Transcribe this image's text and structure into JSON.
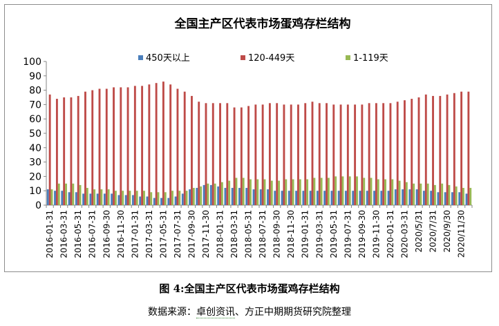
{
  "chart_data": {
    "type": "bar",
    "title": "全国主产区代表市场蛋鸡存栏结构",
    "ylim": [
      0,
      100
    ],
    "yticks": [
      0,
      10,
      20,
      30,
      40,
      50,
      60,
      70,
      80,
      90,
      100
    ],
    "legend_position": "top",
    "grid": false,
    "categories": [
      "2016-01-31",
      "2016-02-29",
      "2016-03-31",
      "2016-04-30",
      "2016-05-31",
      "2016-06-30",
      "2016-07-31",
      "2016-08-31",
      "2016-09-30",
      "2016-10-31",
      "2016-11-30",
      "2016-12-31",
      "2017-01-31",
      "2017-02-28",
      "2017-03-31",
      "2017-04-30",
      "2017-05-31",
      "2017-06-30",
      "2017-07-31",
      "2017-08-31",
      "2017-09-30",
      "2017-10-31",
      "2017-11-30",
      "2017-12-31",
      "2018-01-31",
      "2018-02-28",
      "2018-03-31",
      "2018-04-30",
      "2018-05-31",
      "2018-06-30",
      "2018-07-31",
      "2018-08-31",
      "2018-09-30",
      "2018-10-31",
      "2018-11-30",
      "2018-12-31",
      "2019-01-31",
      "2019-02-28",
      "2019-03-31",
      "2019-04-30",
      "2019-05-31",
      "2019-06-30",
      "2019-07-31",
      "2019-08-31",
      "2019-09-30",
      "2019-10-31",
      "2019-11-30",
      "2019-12-31",
      "2020-01-31",
      "2020-02-29",
      "2020-03-31",
      "2020/4/30",
      "2020/5/31",
      "2020/6/30",
      "2020/7/31",
      "2020/8/31",
      "2020/9/30",
      "2020/10/31",
      "2020/11/30",
      "2020/12/31"
    ],
    "tick_labels": [
      "2016-01-31",
      "2016-03-31",
      "2016-05-31",
      "2016-07-31",
      "2016-09-30",
      "2016-11-30",
      "2017-01-31",
      "2017-03-31",
      "2017-05-31",
      "2017-07-31",
      "2017-09-30",
      "2017-11-30",
      "2018-01-31",
      "2018-03-31",
      "2018-05-31",
      "2018-07-31",
      "2018-09-30",
      "2018-11-30",
      "2019-01-31",
      "2019-03-31",
      "2019-05-31",
      "2019-07-31",
      "2019-09-30",
      "2019-11-30",
      "2020-01-31",
      "2020-03-31",
      "2020/5/31",
      "2020/7/31",
      "2020/9/30",
      "2020/11/30"
    ],
    "series": [
      {
        "name": "450天以上",
        "color": "#4a7ebb",
        "values": [
          11,
          10,
          10,
          9,
          9,
          8,
          8,
          8,
          8,
          8,
          7,
          7,
          7,
          6,
          6,
          5,
          5,
          5,
          6,
          8,
          11,
          12,
          14,
          14,
          13,
          12,
          12,
          12,
          12,
          11,
          11,
          11,
          10,
          10,
          10,
          10,
          10,
          10,
          10,
          10,
          10,
          10,
          10,
          10,
          10,
          10,
          10,
          10,
          10,
          11,
          11,
          11,
          11,
          10,
          10,
          9,
          9,
          9,
          9,
          8
        ]
      },
      {
        "name": "120-449天",
        "color": "#be4b48",
        "values": [
          77,
          74,
          75,
          75,
          76,
          79,
          80,
          81,
          81,
          82,
          82,
          82,
          83,
          83,
          84,
          85,
          86,
          84,
          81,
          79,
          76,
          72,
          71,
          71,
          71,
          71,
          68,
          68,
          69,
          70,
          70,
          71,
          71,
          70,
          70,
          70,
          71,
          72,
          71,
          71,
          70,
          70,
          70,
          70,
          70,
          71,
          71,
          71,
          71,
          72,
          73,
          74,
          75,
          77,
          76,
          76,
          77,
          78,
          79,
          79
        ]
      },
      {
        "name": "1-119天",
        "color": "#98b954",
        "values": [
          11,
          15,
          15,
          15,
          14,
          12,
          11,
          11,
          11,
          10,
          10,
          10,
          10,
          10,
          9,
          9,
          9,
          10,
          10,
          10,
          12,
          13,
          15,
          15,
          16,
          17,
          19,
          19,
          18,
          18,
          18,
          17,
          17,
          18,
          18,
          18,
          18,
          19,
          19,
          19,
          20,
          20,
          20,
          20,
          19,
          19,
          18,
          18,
          18,
          17,
          16,
          15,
          15,
          15,
          14,
          15,
          14,
          13,
          12,
          12
        ]
      }
    ]
  },
  "figure_caption": "图 4:全国主产区代表市场蛋鸡存栏结构",
  "source": {
    "prefix": "数据来源：",
    "underlined": "卓创资讯",
    "suffix": "、方正中期期货研究院整理"
  }
}
